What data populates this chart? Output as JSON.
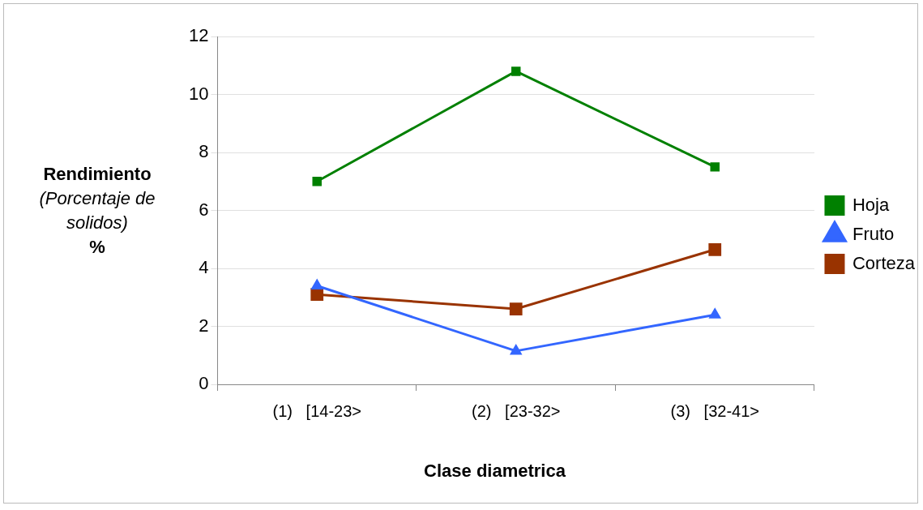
{
  "chart_data": {
    "type": "line",
    "xlabel": "Clase diametrica",
    "ylabel": "Rendimiento\n(Porcentaje de solidos)\n%",
    "categories": [
      "(1)   [14-23>",
      "(2)   [23-32>",
      "(3)   [32-41>"
    ],
    "series": [
      {
        "name": "Hoja",
        "color": "#008000",
        "marker": "square",
        "values": [
          7.0,
          10.8,
          7.5
        ]
      },
      {
        "name": "Fruto",
        "color": "#3366ff",
        "marker": "triangle",
        "values": [
          3.4,
          1.15,
          2.4
        ]
      },
      {
        "name": "Corteza",
        "color": "#993300",
        "marker": "square",
        "values": [
          3.1,
          2.6,
          4.65
        ]
      }
    ],
    "ylim": [
      0,
      12
    ],
    "yticks": [
      0,
      2,
      4,
      6,
      8,
      10,
      12
    ],
    "grid": "y",
    "legend": "right"
  }
}
